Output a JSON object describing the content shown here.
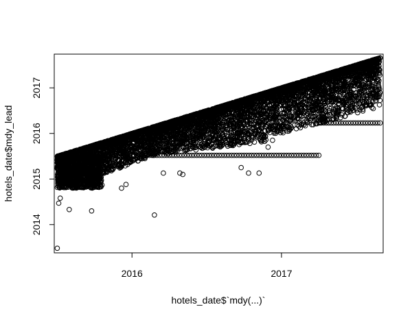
{
  "chart_data": {
    "type": "scatter",
    "title": "",
    "xlabel": "hotels_date$`mdy(...)`",
    "ylabel": "hotels_date$mdy_lead",
    "xlim": [
      2015.48,
      2017.68
    ],
    "ylim": [
      2013.38,
      2017.74
    ],
    "x_ticks": [
      2016,
      2017
    ],
    "x_tick_labels": [
      "2016",
      "2017"
    ],
    "y_ticks": [
      2014,
      2015,
      2016,
      2017
    ],
    "y_tick_labels": [
      "2014",
      "2015",
      "2016",
      "2017"
    ],
    "grid": false,
    "legend": "none",
    "marker": "open-circle",
    "marker_color": "#000000",
    "x_range": [
      2015.5,
      2017.66
    ],
    "upper_bound": {
      "x": [
        2015.5,
        2017.66
      ],
      "y": [
        2015.5,
        2017.66
      ]
    },
    "base_band": {
      "x": [
        2015.5,
        2015.79
      ],
      "y": [
        2014.8,
        2015.5
      ]
    },
    "constant_rows": [
      {
        "y": 2015.52,
        "x": [
          2015.8,
          2017.25
        ]
      },
      {
        "y": 2016.23,
        "x": [
          2017.25,
          2017.66
        ]
      }
    ],
    "outliers": [
      {
        "x": 2015.5,
        "y": 2013.48
      },
      {
        "x": 2015.58,
        "y": 2014.33
      },
      {
        "x": 2015.73,
        "y": 2014.3
      },
      {
        "x": 2016.15,
        "y": 2014.21
      },
      {
        "x": 2015.51,
        "y": 2014.47
      },
      {
        "x": 2015.52,
        "y": 2014.58
      },
      {
        "x": 2015.93,
        "y": 2014.8
      },
      {
        "x": 2015.96,
        "y": 2014.88
      },
      {
        "x": 2016.21,
        "y": 2015.13
      },
      {
        "x": 2016.32,
        "y": 2015.13
      },
      {
        "x": 2016.34,
        "y": 2015.1
      },
      {
        "x": 2016.73,
        "y": 2015.25
      },
      {
        "x": 2016.78,
        "y": 2015.13
      },
      {
        "x": 2016.85,
        "y": 2015.13
      },
      {
        "x": 2016.91,
        "y": 2015.7
      },
      {
        "x": 2016.94,
        "y": 2015.85
      }
    ]
  }
}
